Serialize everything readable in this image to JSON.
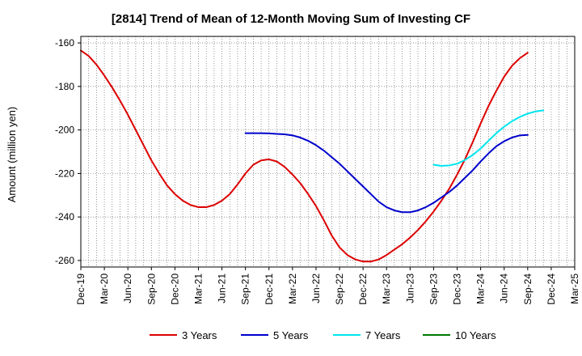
{
  "chart_data": {
    "type": "line",
    "title": "[2814]  Trend of Mean of 12-Month Moving Sum of Investing CF",
    "xlabel": "",
    "ylabel": "Amount (million yen)",
    "ylim": [
      -263,
      -157
    ],
    "yticks": [
      -160,
      -180,
      -200,
      -220,
      -240,
      -260
    ],
    "xticks": [
      "Dec-19",
      "Mar-20",
      "Jun-20",
      "Sep-20",
      "Dec-20",
      "Mar-21",
      "Jun-21",
      "Sep-21",
      "Dec-21",
      "Mar-22",
      "Jun-22",
      "Sep-22",
      "Dec-22",
      "Mar-23",
      "Jun-23",
      "Sep-23",
      "Dec-23",
      "Mar-24",
      "Jun-24",
      "Sep-24",
      "Dec-24",
      "Mar-25"
    ],
    "x_index_range": [
      0,
      63
    ],
    "grid": true,
    "legend_position": "bottom",
    "series": [
      {
        "name": "3 Years",
        "color": "#dd0000",
        "start_index": 0,
        "values": [
          -163.5,
          -166,
          -170,
          -175,
          -180.5,
          -186.5,
          -193,
          -200,
          -207,
          -214,
          -220,
          -225.5,
          -229.5,
          -232.5,
          -234.5,
          -235.5,
          -235.5,
          -234.5,
          -232.5,
          -229.5,
          -225,
          -220,
          -216,
          -214,
          -213.5,
          -214.5,
          -217,
          -220.5,
          -224.5,
          -229.5,
          -235,
          -241.5,
          -248.5,
          -254,
          -257.5,
          -259.5,
          -260.5,
          -260.5,
          -259.5,
          -257.5,
          -255,
          -252.5,
          -249.5,
          -246,
          -242,
          -237.5,
          -232.5,
          -227,
          -220.5,
          -213.5,
          -205.5,
          -197,
          -189,
          -182,
          -175.5,
          -170.5,
          -167,
          -164.5
        ]
      },
      {
        "name": "5 Years",
        "color": "#0000cc",
        "start_index": 21,
        "values": [
          -201.5,
          -201.5,
          -201.5,
          -201.6,
          -201.8,
          -202,
          -202.5,
          -203.5,
          -205,
          -207,
          -209.5,
          -212.5,
          -215.5,
          -219,
          -222.5,
          -226,
          -229.5,
          -233,
          -235.5,
          -237,
          -237.8,
          -237.8,
          -237,
          -235.5,
          -233.5,
          -231,
          -228.5,
          -225.5,
          -222,
          -218.5,
          -214.5,
          -210.8,
          -207.5,
          -205.2,
          -203.5,
          -202.5,
          -202.3
        ]
      },
      {
        "name": "7 Years",
        "color": "#00e5ee",
        "start_index": 45,
        "values": [
          -216,
          -216.5,
          -216.3,
          -215.5,
          -213.8,
          -211.5,
          -208.5,
          -205,
          -201.5,
          -198.5,
          -196,
          -194,
          -192.5,
          -191.5,
          -191
        ]
      },
      {
        "name": "10 Years",
        "color": "#007700",
        "start_index": 0,
        "values": []
      }
    ]
  }
}
